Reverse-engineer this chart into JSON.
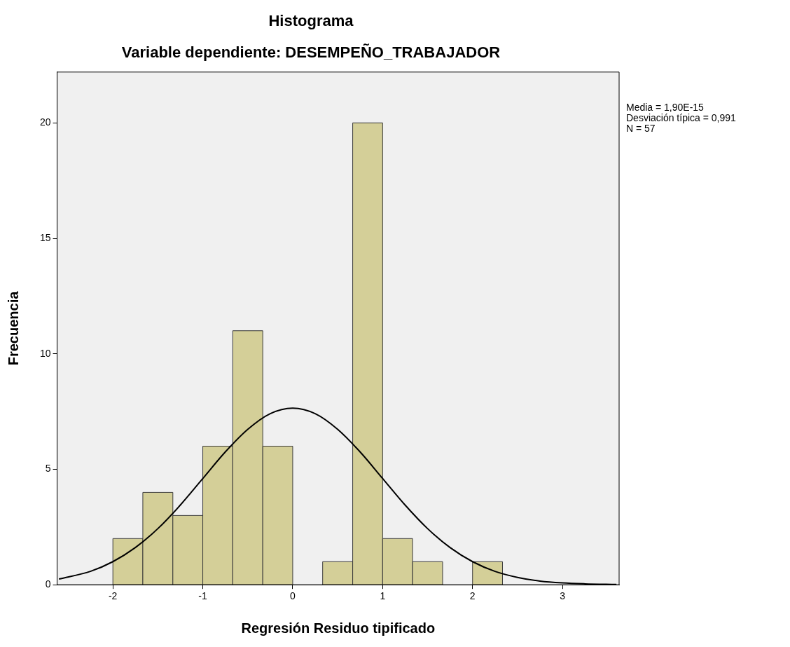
{
  "chart_data": {
    "type": "histogram",
    "title": "Histograma",
    "subtitle": "Variable dependiente: DESEMPEÑO_TRABAJADOR",
    "xlabel": "Regresión Residuo tipificado",
    "ylabel": "Frecuencia",
    "series": [
      {
        "color": "#d4cf98",
        "bins": [
          -2,
          -1.667,
          -1.333,
          -1,
          -0.667,
          -0.333,
          0,
          0.333,
          0.667,
          1,
          1.333,
          1.667,
          2,
          2.333
        ],
        "values": [
          2,
          4,
          3,
          6,
          11,
          6,
          0,
          1,
          20,
          2,
          1,
          0,
          1
        ]
      },
      {
        "type": "line",
        "color": "#000000",
        "x": [
          -2.6,
          -2.25,
          -2,
          -1.75,
          -1.5,
          -1.25,
          -1,
          -0.75,
          -0.5,
          -0.25,
          0,
          0.25,
          0.5,
          0.75,
          1,
          1.25,
          1.5,
          1.75,
          2,
          2.25,
          2.5,
          2.75,
          3,
          3.25,
          3.6
        ],
        "values": [
          0.25,
          0.58,
          1.0,
          1.61,
          2.43,
          3.45,
          4.6,
          5.75,
          6.73,
          7.41,
          7.65,
          7.41,
          6.73,
          5.75,
          4.6,
          3.45,
          2.43,
          1.61,
          1.0,
          0.58,
          0.32,
          0.16,
          0.08,
          0.04,
          0.01
        ]
      }
    ],
    "xlim": [
      -2.62,
      3.63
    ],
    "xticks": [
      -2,
      -1,
      0,
      1,
      2,
      3
    ],
    "ylim": [
      0,
      22.2
    ],
    "yticks": [
      0,
      5,
      10,
      15,
      20
    ],
    "annotations": [
      "Media = 1,90E-15",
      "Desviación típica = 0,991",
      "N = 57"
    ]
  }
}
